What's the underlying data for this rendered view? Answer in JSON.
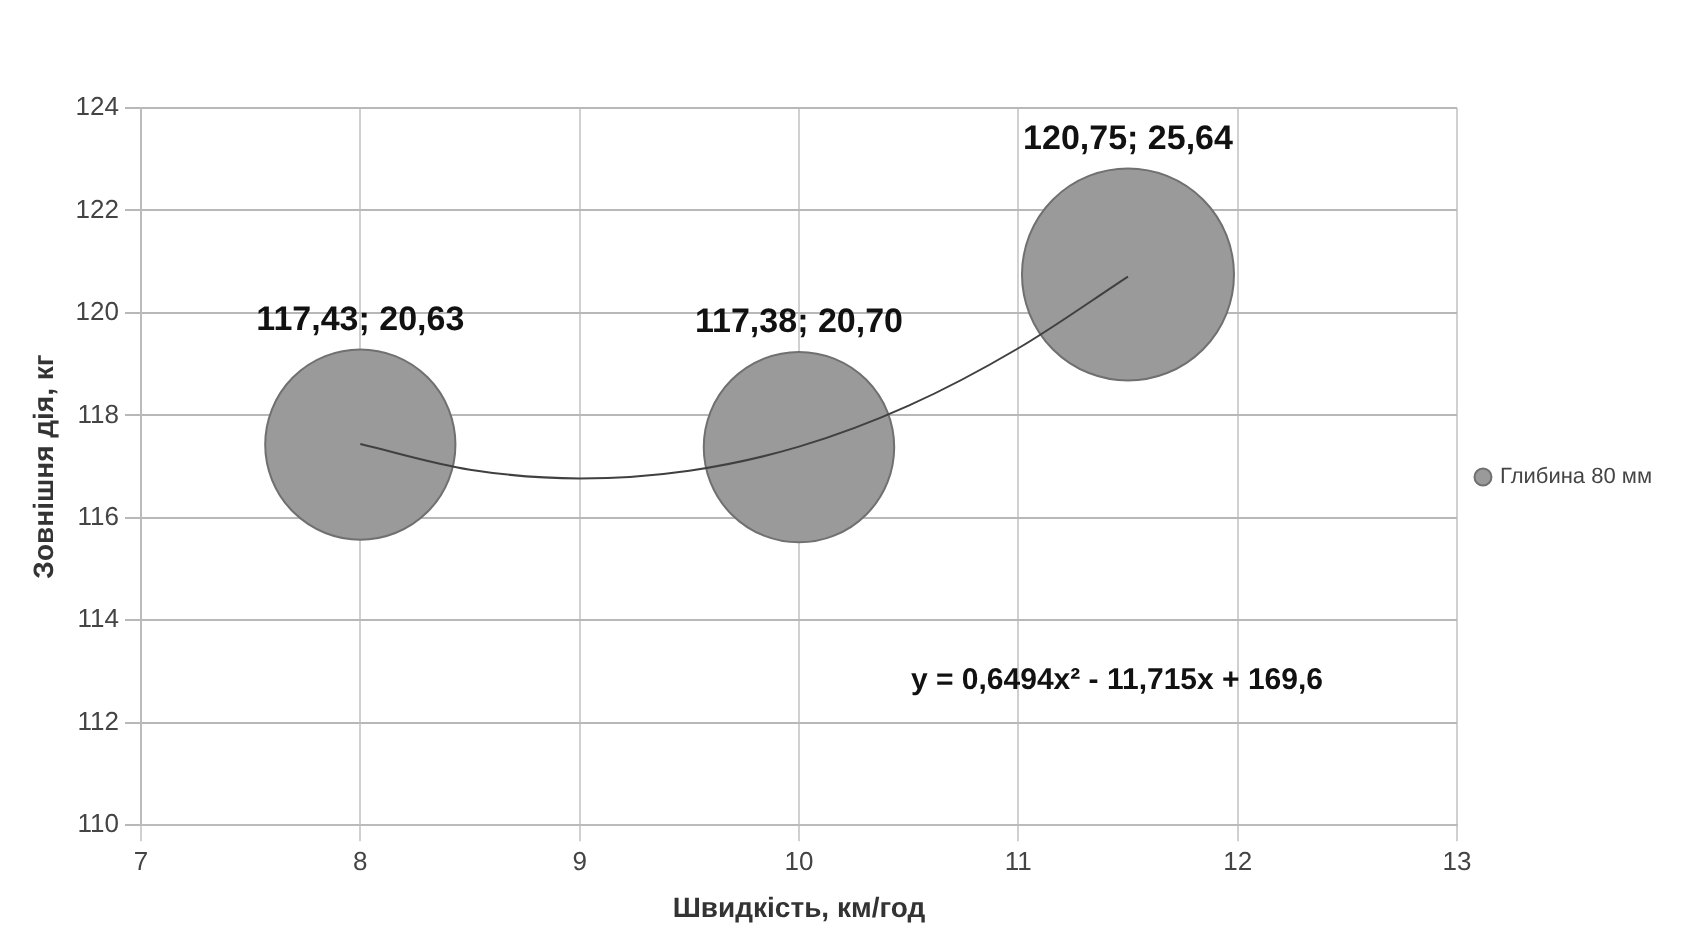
{
  "chart_data": {
    "type": "bubble",
    "xlabel": "Швидкість, км/год",
    "ylabel": "Зовнішня дія, кг",
    "series": [
      {
        "name": "Глибина 80 мм",
        "color": "#9a9a9a",
        "x": [
          8,
          10,
          11.5
        ],
        "values": [
          117.43,
          117.38,
          120.75
        ],
        "sizes": [
          0.805,
          0.807,
          1
        ],
        "value_labels": [
          "117,43; 20,63",
          "117,38; 20,70",
          "120,75; 25,64"
        ]
      },
      {
        "type": "line",
        "color": "#404040",
        "x": [
          8,
          8.5,
          9,
          9.5,
          10,
          10.5,
          11,
          11.5
        ],
        "values": [
          117.44,
          116.94,
          116.77,
          116.92,
          117.39,
          118.19,
          119.31,
          120.71
        ]
      }
    ],
    "xlim": [
      7,
      13
    ],
    "xticks": [
      7,
      8,
      9,
      10,
      11,
      12,
      13
    ],
    "ylim": [
      110,
      124
    ],
    "yticks": [
      110,
      112,
      114,
      116,
      118,
      120,
      122,
      124
    ],
    "grid": true,
    "legend": "right",
    "annotations": [
      "y = 0,6494x² - 11,715x + 169,6"
    ]
  }
}
